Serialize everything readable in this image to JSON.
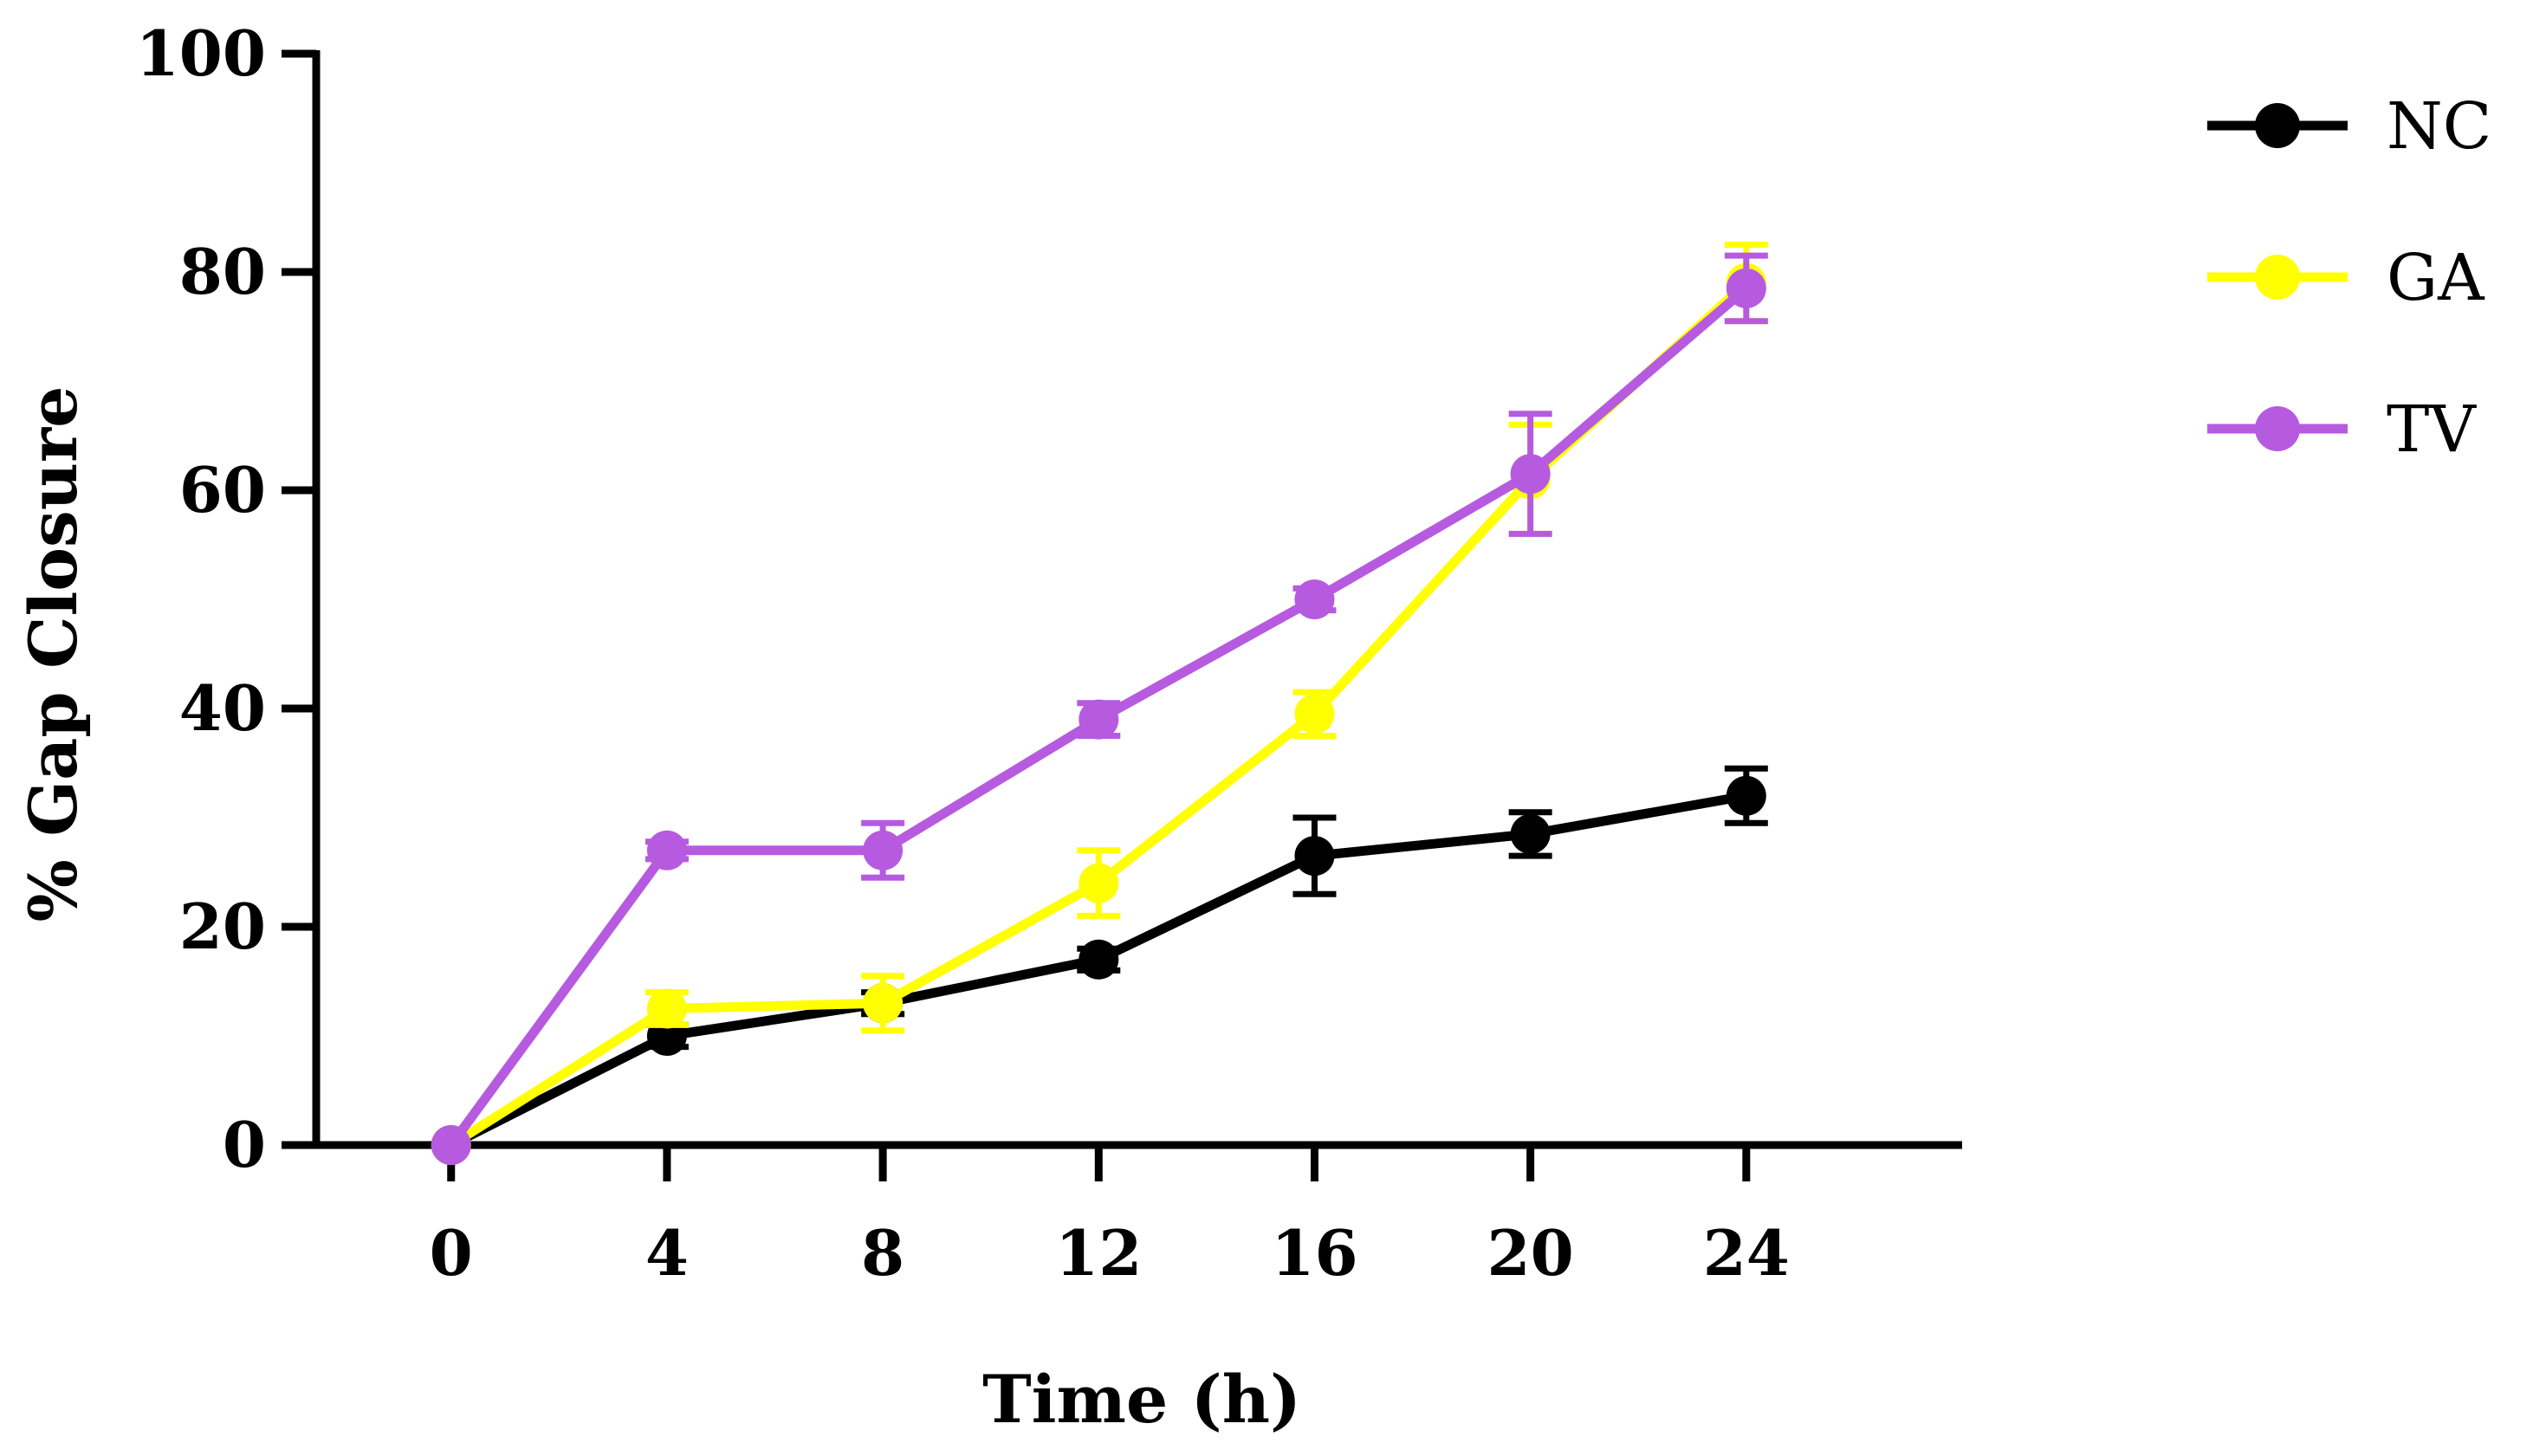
{
  "chart_data": {
    "type": "line",
    "title": "",
    "xlabel": "Time (h)",
    "ylabel": "% Gap Closure",
    "x": [
      0,
      4,
      8,
      12,
      16,
      20,
      24
    ],
    "x_tick_labels": [
      "0",
      "4",
      "8",
      "12",
      "16",
      "20",
      "24"
    ],
    "y_ticks": [
      0,
      20,
      40,
      60,
      80,
      100
    ],
    "y_tick_labels": [
      "0",
      "20",
      "40",
      "60",
      "80",
      "100"
    ],
    "xlim": [
      -2.5,
      28
    ],
    "ylim": [
      0,
      100
    ],
    "grid": false,
    "legend_position": "top-right",
    "series": [
      {
        "name": "NC",
        "color": "#000000",
        "values": [
          0,
          10,
          13,
          17,
          26.5,
          28.5,
          32
        ],
        "errors": [
          0,
          1.0,
          1.0,
          1.0,
          3.5,
          2.0,
          2.5
        ]
      },
      {
        "name": "GA",
        "color": "#ffff00",
        "values": [
          0,
          12.5,
          13,
          24,
          39.5,
          61,
          79
        ],
        "errors": [
          0,
          1.5,
          2.5,
          3.0,
          2.0,
          5.0,
          3.5
        ]
      },
      {
        "name": "TV",
        "color": "#b65be0",
        "values": [
          0,
          27,
          27,
          39,
          50,
          61.5,
          78.5
        ],
        "errors": [
          0,
          0.8,
          2.5,
          1.5,
          1.0,
          5.5,
          3.0
        ]
      }
    ]
  }
}
